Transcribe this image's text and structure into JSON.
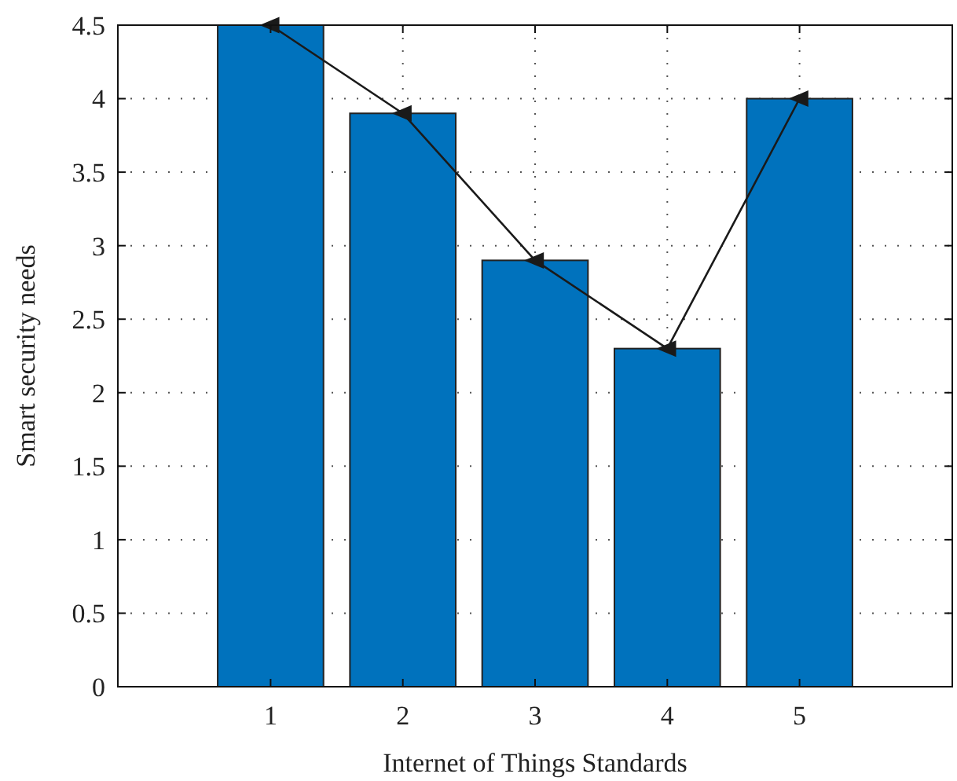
{
  "chart_data": {
    "type": "bar",
    "xlabel": "Internet of Things Standards",
    "ylabel": "Smart security needs",
    "categories": [
      "1",
      "2",
      "3",
      "4",
      "5"
    ],
    "series": [
      {
        "color": "#0072bd",
        "values": [
          4.5,
          3.9,
          2.9,
          2.3,
          4.0
        ]
      },
      {
        "type": "line",
        "color": "#1a1a1a",
        "marker": "triangle",
        "values": [
          4.5,
          3.9,
          2.9,
          2.3,
          4.0
        ]
      }
    ],
    "ylim": [
      0,
      4.5
    ],
    "yticks": [
      0,
      0.5,
      1,
      1.5,
      2,
      2.5,
      3,
      3.5,
      4,
      4.5
    ],
    "grid": true
  }
}
